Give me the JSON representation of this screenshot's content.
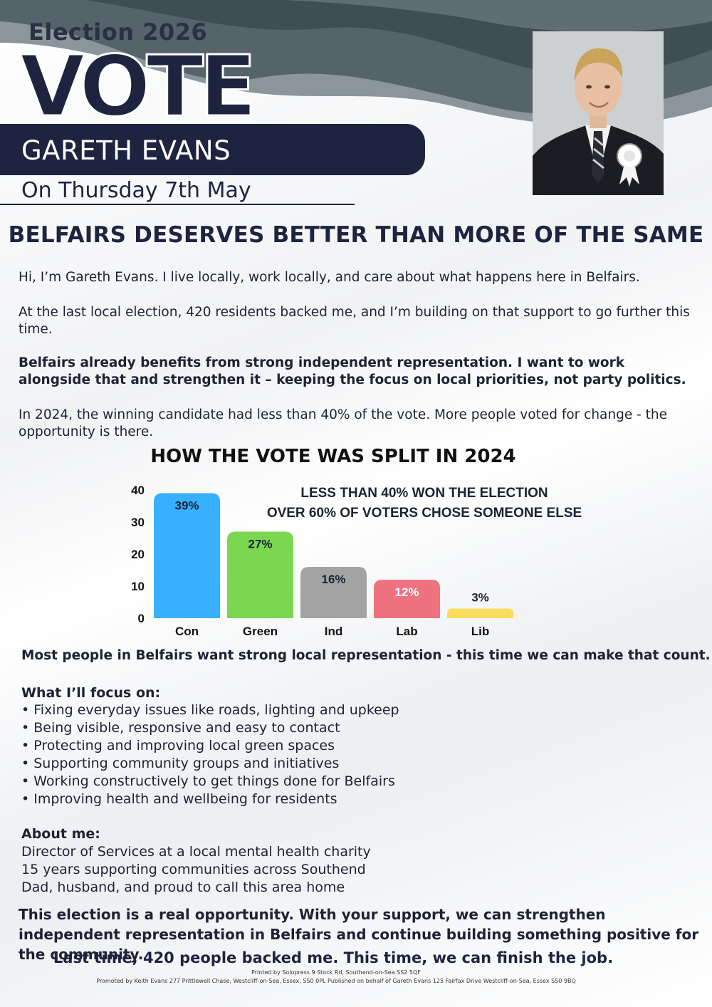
{
  "header": {
    "election_year": "Election 2026",
    "vote_word": "VOTE",
    "candidate_name": "GARETH EVANS",
    "election_date": "On Thursday 7th May"
  },
  "headline": "BELFAIRS DESERVES BETTER THAN MORE OF THE SAME",
  "intro": {
    "p1": "Hi, I’m Gareth Evans. I live locally, work locally, and care about what happens here in Belfairs.",
    "p2": "At the last local election, 420 residents backed me, and I’m building on that support to go further this time.",
    "p3": "Belfairs already benefits from strong independent representation. I want to work alongside that and strengthen it – keeping the focus on local priorities, not party politics.",
    "p4": "In 2024, the winning candidate had less than 40% of the vote. More  people voted for change - the opportunity is there."
  },
  "chart_data": {
    "type": "bar",
    "title": "HOW THE VOTE WAS SPLIT IN 2024",
    "categories": [
      "Con",
      "Green",
      "Ind",
      "Lab",
      "Lib"
    ],
    "values": [
      39,
      27,
      16,
      12,
      3
    ],
    "data_labels": [
      "39%",
      "27%",
      "16%",
      "12%",
      "3%"
    ],
    "colors": [
      "#36b0ff",
      "#7bd650",
      "#a3a3a3",
      "#ee7280",
      "#fadd5f"
    ],
    "label_colors": [
      "#1e2235",
      "#1e2235",
      "#1e2235",
      "#ffffff",
      "#1e2235"
    ],
    "ylim": [
      0,
      40
    ],
    "yticks": [
      0,
      10,
      20,
      30,
      40
    ],
    "annotation_lines": [
      "LESS THAN 40% WON THE ELECTION",
      "OVER 60% OF VOTERS CHOSE SOMEONE ELSE"
    ]
  },
  "statement": "Most people in Belfairs want strong local representation - this time we can make that count.",
  "focus": {
    "heading": "What I’ll focus on:",
    "items": [
      "Fixing everyday issues like roads, lighting and upkeep",
      "Being visible, responsive and easy to contact",
      "Protecting and improving local green spaces",
      "Supporting community groups and initiatives",
      "Working constructively to get things done for Belfairs",
      "Improving health and wellbeing for residents"
    ]
  },
  "about": {
    "heading": "About me:",
    "items": [
      "Director of Services at a local mental health charity",
      "15 years supporting communities across Southend",
      "Dad, husband, and proud to call this area home"
    ]
  },
  "closing": "This election is a real opportunity. With your support, we can strengthen independent representation in Belfairs and continue building something positive for the community.",
  "finish": "Last time, 420 people backed me. This time, we can finish the job.",
  "imprint": {
    "printed": "Printed by Solopress 9 Stock Rd, Southend-on-Sea SS2 5QF",
    "promoted": "Promoted by Keith Evans 277 Prittlewell Chase, Westcliff-on-Sea, Essex, SS0 0PL Published on behalf of Gareth Evans 125 Fairfax Drive Westcliff-on-Sea, Essex SS0 9BQ"
  },
  "colors": {
    "navy": "#1e2440",
    "wave_dark": "#3f4d55",
    "wave_mid": "#6f7d84"
  }
}
